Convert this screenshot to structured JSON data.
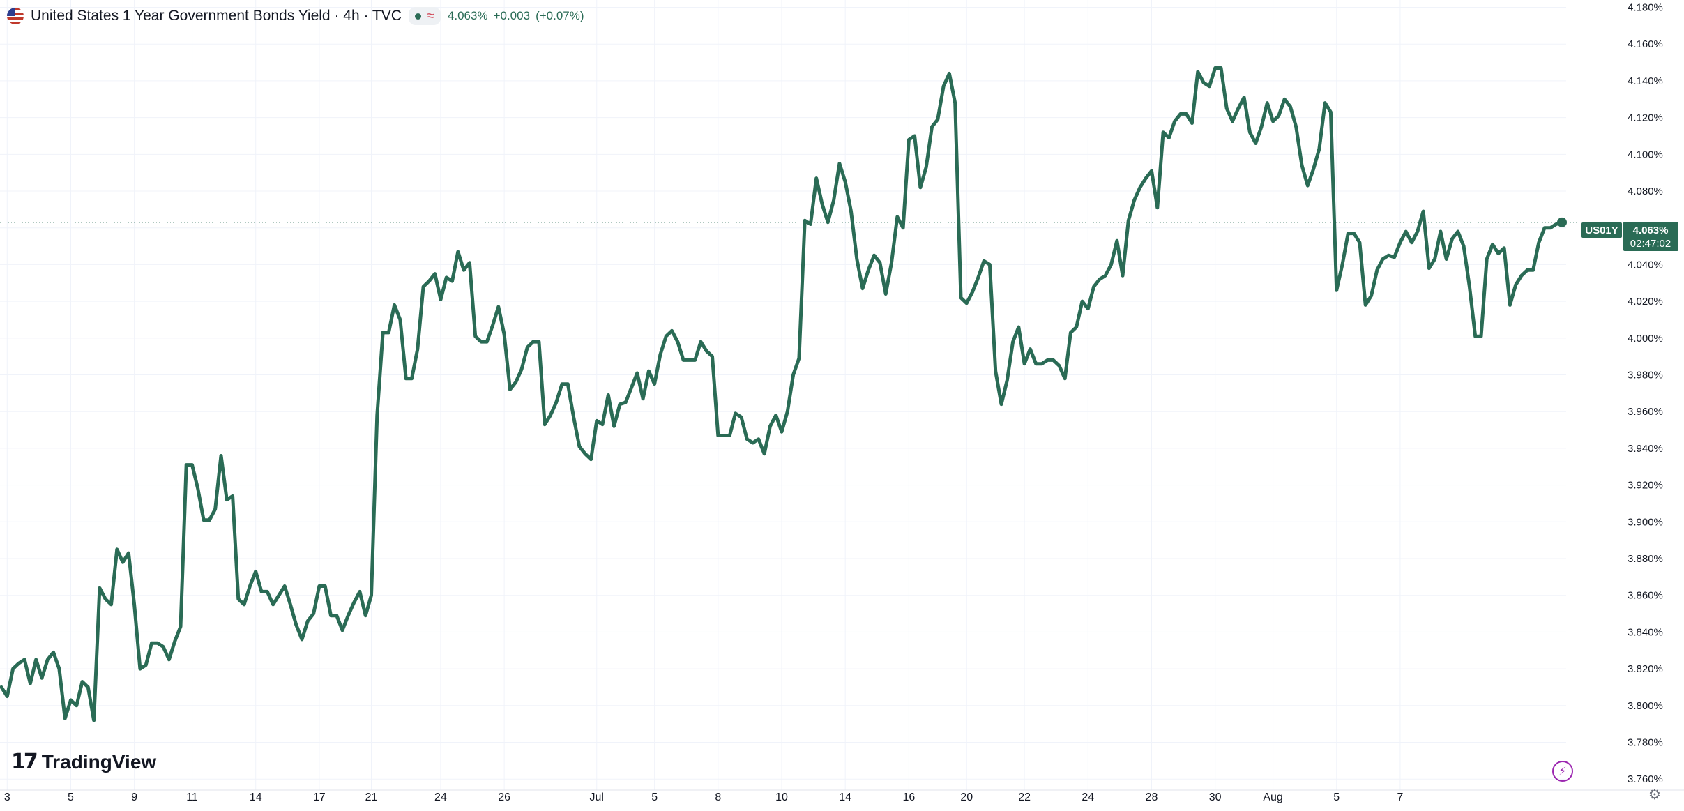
{
  "header": {
    "title": "United States 1 Year Government Bonds Yield · 4h · TVC",
    "approx_symbol": "≈",
    "last_value": "4.063%",
    "change": "+0.003",
    "change_pct": "(+0.07%)"
  },
  "price_label": {
    "symbol": "US01Y",
    "value": "4.063%",
    "countdown": "02:47:02"
  },
  "branding": {
    "logo_mark": "17",
    "logo_text": "TradingView"
  },
  "icons": {
    "flag": "us-flag-icon",
    "status": "market-status-dot-icon",
    "bolt": "lightning-icon",
    "settings": "gear-icon"
  },
  "colors": {
    "line": "#2a6b55",
    "grid": "#f0f3fa",
    "axis_text": "#131722",
    "accent": "#9c27b0"
  },
  "chart_data": {
    "type": "line",
    "title": "United States 1 Year Government Bonds Yield · 4h · TVC",
    "xlabel": "",
    "ylabel": "",
    "ylim": [
      3.754,
      4.184
    ],
    "y_ticks": [
      3.76,
      3.78,
      3.8,
      3.82,
      3.84,
      3.86,
      3.88,
      3.9,
      3.92,
      3.94,
      3.96,
      3.98,
      4.0,
      4.02,
      4.04,
      4.06,
      4.08,
      4.1,
      4.12,
      4.14,
      4.16,
      4.18
    ],
    "y_tick_labels": [
      "3.760%",
      "3.780%",
      "3.800%",
      "3.820%",
      "3.840%",
      "3.860%",
      "3.880%",
      "3.900%",
      "3.920%",
      "3.940%",
      "3.960%",
      "3.980%",
      "4.000%",
      "4.020%",
      "4.040%",
      "4.060%",
      "4.080%",
      "4.100%",
      "4.120%",
      "4.140%",
      "4.160%",
      "4.180%"
    ],
    "x_ticks": [
      {
        "label": "3",
        "index": 1
      },
      {
        "label": "5",
        "index": 12
      },
      {
        "label": "9",
        "index": 23
      },
      {
        "label": "11",
        "index": 33
      },
      {
        "label": "14",
        "index": 44
      },
      {
        "label": "17",
        "index": 55
      },
      {
        "label": "21",
        "index": 64
      },
      {
        "label": "24",
        "index": 76
      },
      {
        "label": "26",
        "index": 87
      },
      {
        "label": "Jul",
        "index": 103
      },
      {
        "label": "5",
        "index": 113
      },
      {
        "label": "8",
        "index": 124
      },
      {
        "label": "10",
        "index": 135
      },
      {
        "label": "14",
        "index": 146
      },
      {
        "label": "16",
        "index": 157
      },
      {
        "label": "20",
        "index": 167
      },
      {
        "label": "22",
        "index": 177
      },
      {
        "label": "24",
        "index": 188
      },
      {
        "label": "28",
        "index": 199
      },
      {
        "label": "30",
        "index": 210
      },
      {
        "label": "Aug",
        "index": 220
      },
      {
        "label": "5",
        "index": 231
      },
      {
        "label": "7",
        "index": 242
      }
    ],
    "series": [
      {
        "values": [
          3.81,
          3.805,
          3.82,
          3.823,
          3.825,
          3.812,
          3.825,
          3.815,
          3.825,
          3.829,
          3.82,
          3.793,
          3.803,
          3.8,
          3.813,
          3.81,
          3.792,
          3.864,
          3.858,
          3.855,
          3.885,
          3.878,
          3.883,
          3.855,
          3.82,
          3.822,
          3.834,
          3.834,
          3.832,
          3.825,
          3.835,
          3.843,
          3.931,
          3.931,
          3.918,
          3.901,
          3.901,
          3.907,
          3.936,
          3.912,
          3.914,
          3.858,
          3.855,
          3.865,
          3.873,
          3.862,
          3.862,
          3.855,
          3.86,
          3.865,
          3.855,
          3.844,
          3.836,
          3.846,
          3.85,
          3.865,
          3.865,
          3.849,
          3.849,
          3.841,
          3.849,
          3.856,
          3.862,
          3.849,
          3.86,
          3.958,
          4.003,
          4.003,
          4.018,
          4.01,
          3.978,
          3.978,
          3.994,
          4.028,
          4.031,
          4.035,
          4.021,
          4.033,
          4.031,
          4.047,
          4.037,
          4.041,
          4.001,
          3.998,
          3.998,
          4.007,
          4.017,
          4.002,
          3.972,
          3.976,
          3.983,
          3.995,
          3.998,
          3.998,
          3.953,
          3.958,
          3.965,
          3.975,
          3.975,
          3.957,
          3.941,
          3.937,
          3.934,
          3.955,
          3.953,
          3.969,
          3.952,
          3.964,
          3.965,
          3.973,
          3.981,
          3.967,
          3.982,
          3.975,
          3.991,
          4.001,
          4.004,
          3.998,
          3.988,
          3.988,
          3.988,
          3.998,
          3.993,
          3.99,
          3.947,
          3.947,
          3.947,
          3.959,
          3.957,
          3.945,
          3.943,
          3.945,
          3.937,
          3.952,
          3.958,
          3.949,
          3.96,
          3.98,
          3.989,
          4.064,
          4.062,
          4.087,
          4.073,
          4.063,
          4.075,
          4.095,
          4.085,
          4.069,
          4.043,
          4.027,
          4.037,
          4.045,
          4.041,
          4.024,
          4.041,
          4.066,
          4.06,
          4.108,
          4.11,
          4.082,
          4.093,
          4.115,
          4.119,
          4.137,
          4.144,
          4.128,
          4.022,
          4.019,
          4.025,
          4.033,
          4.042,
          4.04,
          3.982,
          3.964,
          3.977,
          3.998,
          4.006,
          3.986,
          3.994,
          3.986,
          3.986,
          3.988,
          3.988,
          3.985,
          3.978,
          4.003,
          4.006,
          4.02,
          4.016,
          4.028,
          4.032,
          4.034,
          4.04,
          4.053,
          4.034,
          4.064,
          4.075,
          4.082,
          4.087,
          4.091,
          4.071,
          4.112,
          4.109,
          4.118,
          4.122,
          4.122,
          4.117,
          4.145,
          4.139,
          4.137,
          4.147,
          4.147,
          4.125,
          4.118,
          4.125,
          4.131,
          4.112,
          4.106,
          4.115,
          4.128,
          4.118,
          4.121,
          4.13,
          4.126,
          4.115,
          4.094,
          4.083,
          4.092,
          4.103,
          4.128,
          4.123,
          4.026,
          4.04,
          4.057,
          4.057,
          4.052,
          4.018,
          4.023,
          4.037,
          4.043,
          4.045,
          4.044,
          4.052,
          4.058,
          4.052,
          4.058,
          4.069,
          4.038,
          4.043,
          4.058,
          4.043,
          4.054,
          4.058,
          4.05,
          4.028,
          4.001,
          4.001,
          4.043,
          4.051,
          4.046,
          4.049,
          4.018,
          4.029,
          4.034,
          4.037,
          4.037,
          4.052,
          4.06,
          4.06,
          4.062,
          4.063
        ]
      }
    ],
    "last_value": 4.063,
    "grid": true,
    "legend": "none"
  }
}
